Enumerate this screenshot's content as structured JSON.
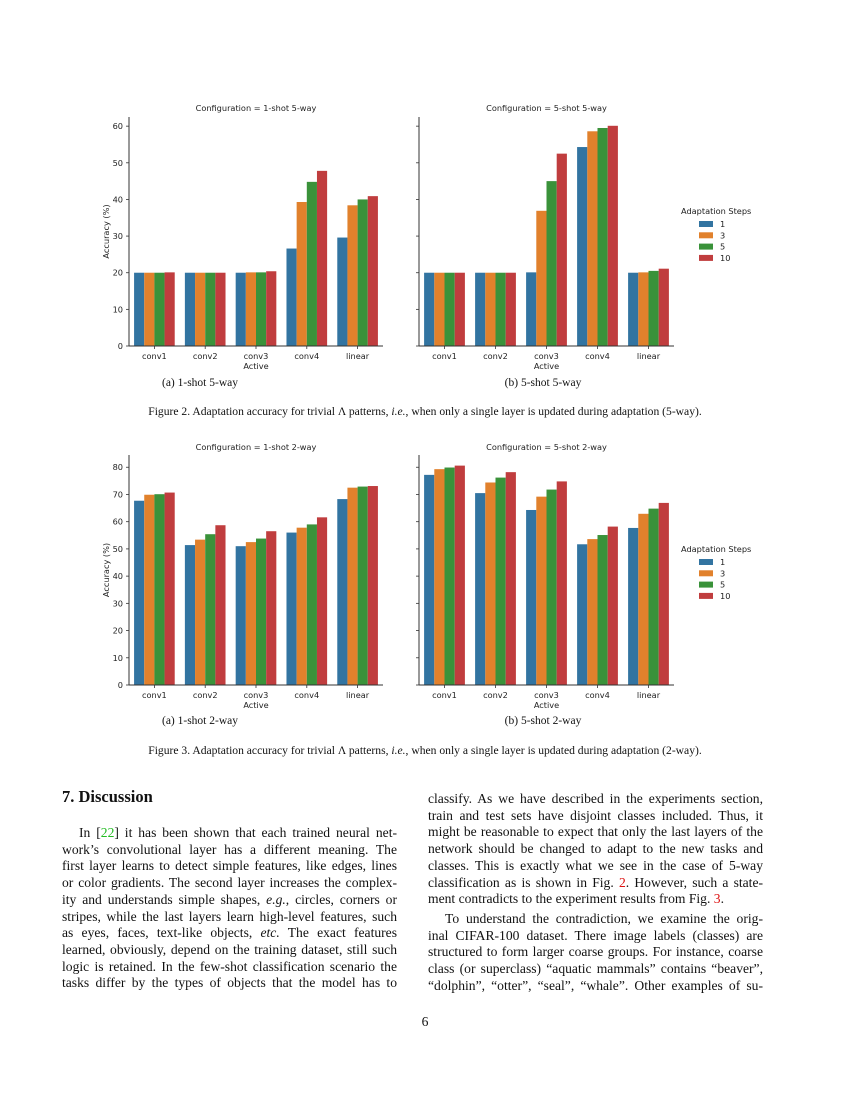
{
  "chart_data": [
    {
      "type": "bar",
      "title": "Configuration = 1-shot 5-way",
      "xlabel": "Active",
      "ylabel": "Accuracy (%)",
      "ylim": [
        0,
        62.5
      ],
      "yticks": [
        0,
        10,
        20,
        30,
        40,
        50,
        60
      ],
      "show_yticklabels": true,
      "categories": [
        "conv1",
        "conv2",
        "conv3",
        "conv4",
        "linear"
      ],
      "series": [
        {
          "name": "1",
          "values": [
            20,
            20,
            20,
            26.6,
            29.6
          ]
        },
        {
          "name": "3",
          "values": [
            20,
            20,
            20.1,
            39.3,
            38.4
          ]
        },
        {
          "name": "5",
          "values": [
            20,
            20,
            20.1,
            44.8,
            40.0
          ]
        },
        {
          "name": "10",
          "values": [
            20.1,
            20,
            20.4,
            47.8,
            40.9
          ]
        }
      ],
      "legend": null,
      "grid": false
    },
    {
      "type": "bar",
      "title": "Configuration = 5-shot 5-way",
      "xlabel": "Active",
      "ylabel": "",
      "ylim": [
        0,
        62.5
      ],
      "yticks": [
        0,
        10,
        20,
        30,
        40,
        50,
        60
      ],
      "show_yticklabels": false,
      "categories": [
        "conv1",
        "conv2",
        "conv3",
        "conv4",
        "linear"
      ],
      "series": [
        {
          "name": "1",
          "values": [
            20,
            20,
            20.1,
            54.3,
            20.0
          ]
        },
        {
          "name": "3",
          "values": [
            20,
            20,
            36.9,
            58.6,
            20.1
          ]
        },
        {
          "name": "5",
          "values": [
            20,
            20,
            45.0,
            59.5,
            20.5
          ]
        },
        {
          "name": "10",
          "values": [
            20,
            20,
            52.5,
            60.1,
            21.1
          ]
        }
      ],
      "legend": {
        "title": "Adaptation Steps",
        "placement": "right"
      },
      "grid": false
    },
    {
      "type": "bar",
      "title": "Configuration = 1-shot 2-way",
      "xlabel": "Active",
      "ylabel": "Accuracy (%)",
      "ylim": [
        0,
        84.5
      ],
      "yticks": [
        0,
        10,
        20,
        30,
        40,
        50,
        60,
        70,
        80
      ],
      "show_yticklabels": true,
      "categories": [
        "conv1",
        "conv2",
        "conv3",
        "conv4",
        "linear"
      ],
      "series": [
        {
          "name": "1",
          "values": [
            67.7,
            51.4,
            51.0,
            56.0,
            68.3
          ]
        },
        {
          "name": "3",
          "values": [
            69.9,
            53.4,
            52.5,
            57.8,
            72.5
          ]
        },
        {
          "name": "5",
          "values": [
            70.1,
            55.4,
            53.8,
            59.0,
            72.9
          ]
        },
        {
          "name": "10",
          "values": [
            70.7,
            58.7,
            56.5,
            61.6,
            73.1
          ]
        }
      ],
      "legend": null,
      "grid": false
    },
    {
      "type": "bar",
      "title": "Configuration = 5-shot 2-way",
      "xlabel": "Active",
      "ylabel": "",
      "ylim": [
        0,
        84.5
      ],
      "yticks": [
        0,
        10,
        20,
        30,
        40,
        50,
        60,
        70,
        80
      ],
      "show_yticklabels": false,
      "categories": [
        "conv1",
        "conv2",
        "conv3",
        "conv4",
        "linear"
      ],
      "series": [
        {
          "name": "1",
          "values": [
            77.2,
            70.5,
            64.3,
            51.7,
            57.7
          ]
        },
        {
          "name": "3",
          "values": [
            79.3,
            74.4,
            69.2,
            53.6,
            62.9
          ]
        },
        {
          "name": "5",
          "values": [
            79.9,
            76.2,
            71.8,
            55.1,
            64.8
          ]
        },
        {
          "name": "10",
          "values": [
            80.6,
            78.2,
            74.8,
            58.2,
            66.9
          ]
        }
      ],
      "legend": {
        "title": "Adaptation Steps",
        "placement": "right"
      },
      "grid": false
    }
  ],
  "colors": [
    "#3274a1",
    "#e1812c",
    "#3a923a",
    "#c03d3e"
  ],
  "fig2": {
    "sub_a": "(a) 1-shot 5-way",
    "sub_b": "(b) 5-shot 5-way",
    "caption_pre": "Figure 2. Adaptation accuracy for trivial Λ patterns, ",
    "caption_ie": "i.e.",
    "caption_post": ", when only a single layer is updated during adaptation (5-way)."
  },
  "fig3": {
    "sub_a": "(a) 1-shot 2-way",
    "sub_b": "(b) 5-shot 2-way",
    "caption_pre": "Figure 3. Adaptation accuracy for trivial Λ patterns, ",
    "caption_ie": "i.e.",
    "caption_post": ", when only a single layer is updated during adaptation (2-way)."
  },
  "section": {
    "heading": "7. Discussion"
  },
  "left": {
    "l0_pre": "In [",
    "l0_ref": "22",
    "l0_post": "] it has been shown that each trained neural net-",
    "lines": [
      "work’s convolutional layer has a different meaning.  The",
      "first layer learns to detect simple features, like edges, lines",
      "or color gradients. The second layer increases the complex-"
    ],
    "l4_pre": "ity and understands simple shapes, ",
    "l4_em": "e.g.",
    "l4_post": ", circles, corners or",
    "l5": "stripes, while the last layers learn high-level features, such",
    "l6_pre": "as eyes, faces, text-like objects, ",
    "l6_em": "etc.",
    "l6_post": "  The exact features",
    "lines2": [
      "learned, obviously, depend on the training dataset, still such",
      "logic is retained. In the few-shot classification scenario the",
      "tasks differ by the types of objects that the model has to"
    ]
  },
  "right": {
    "lines": [
      "classify.  As we have described in the experiments section,",
      "train and test sets have disjoint classes included.  Thus, it",
      "might be reasonable to expect that only the last layers of the",
      "network should be changed to adapt to the new tasks and",
      "classes.  This is exactly what we see in the case of 5-way"
    ],
    "l5_pre": "classification as is shown in Fig. ",
    "l5_ref": "2",
    "l5_post": ". However, such a state-",
    "l6_pre": "ment contradicts to the experiment results from Fig. ",
    "l6_ref": "3",
    "l6_post": ".",
    "p2": [
      "To understand the contradiction, we examine the orig-",
      "inal CIFAR-100 dataset.  There image labels (classes) are",
      "structured to form larger coarse groups. For instance, coarse",
      "class (or superclass) “aquatic mammals” contains “beaver”,",
      "“dolphin”, “otter”, “seal”, “whale”.  Other examples of su-"
    ]
  },
  "page_number": "6"
}
